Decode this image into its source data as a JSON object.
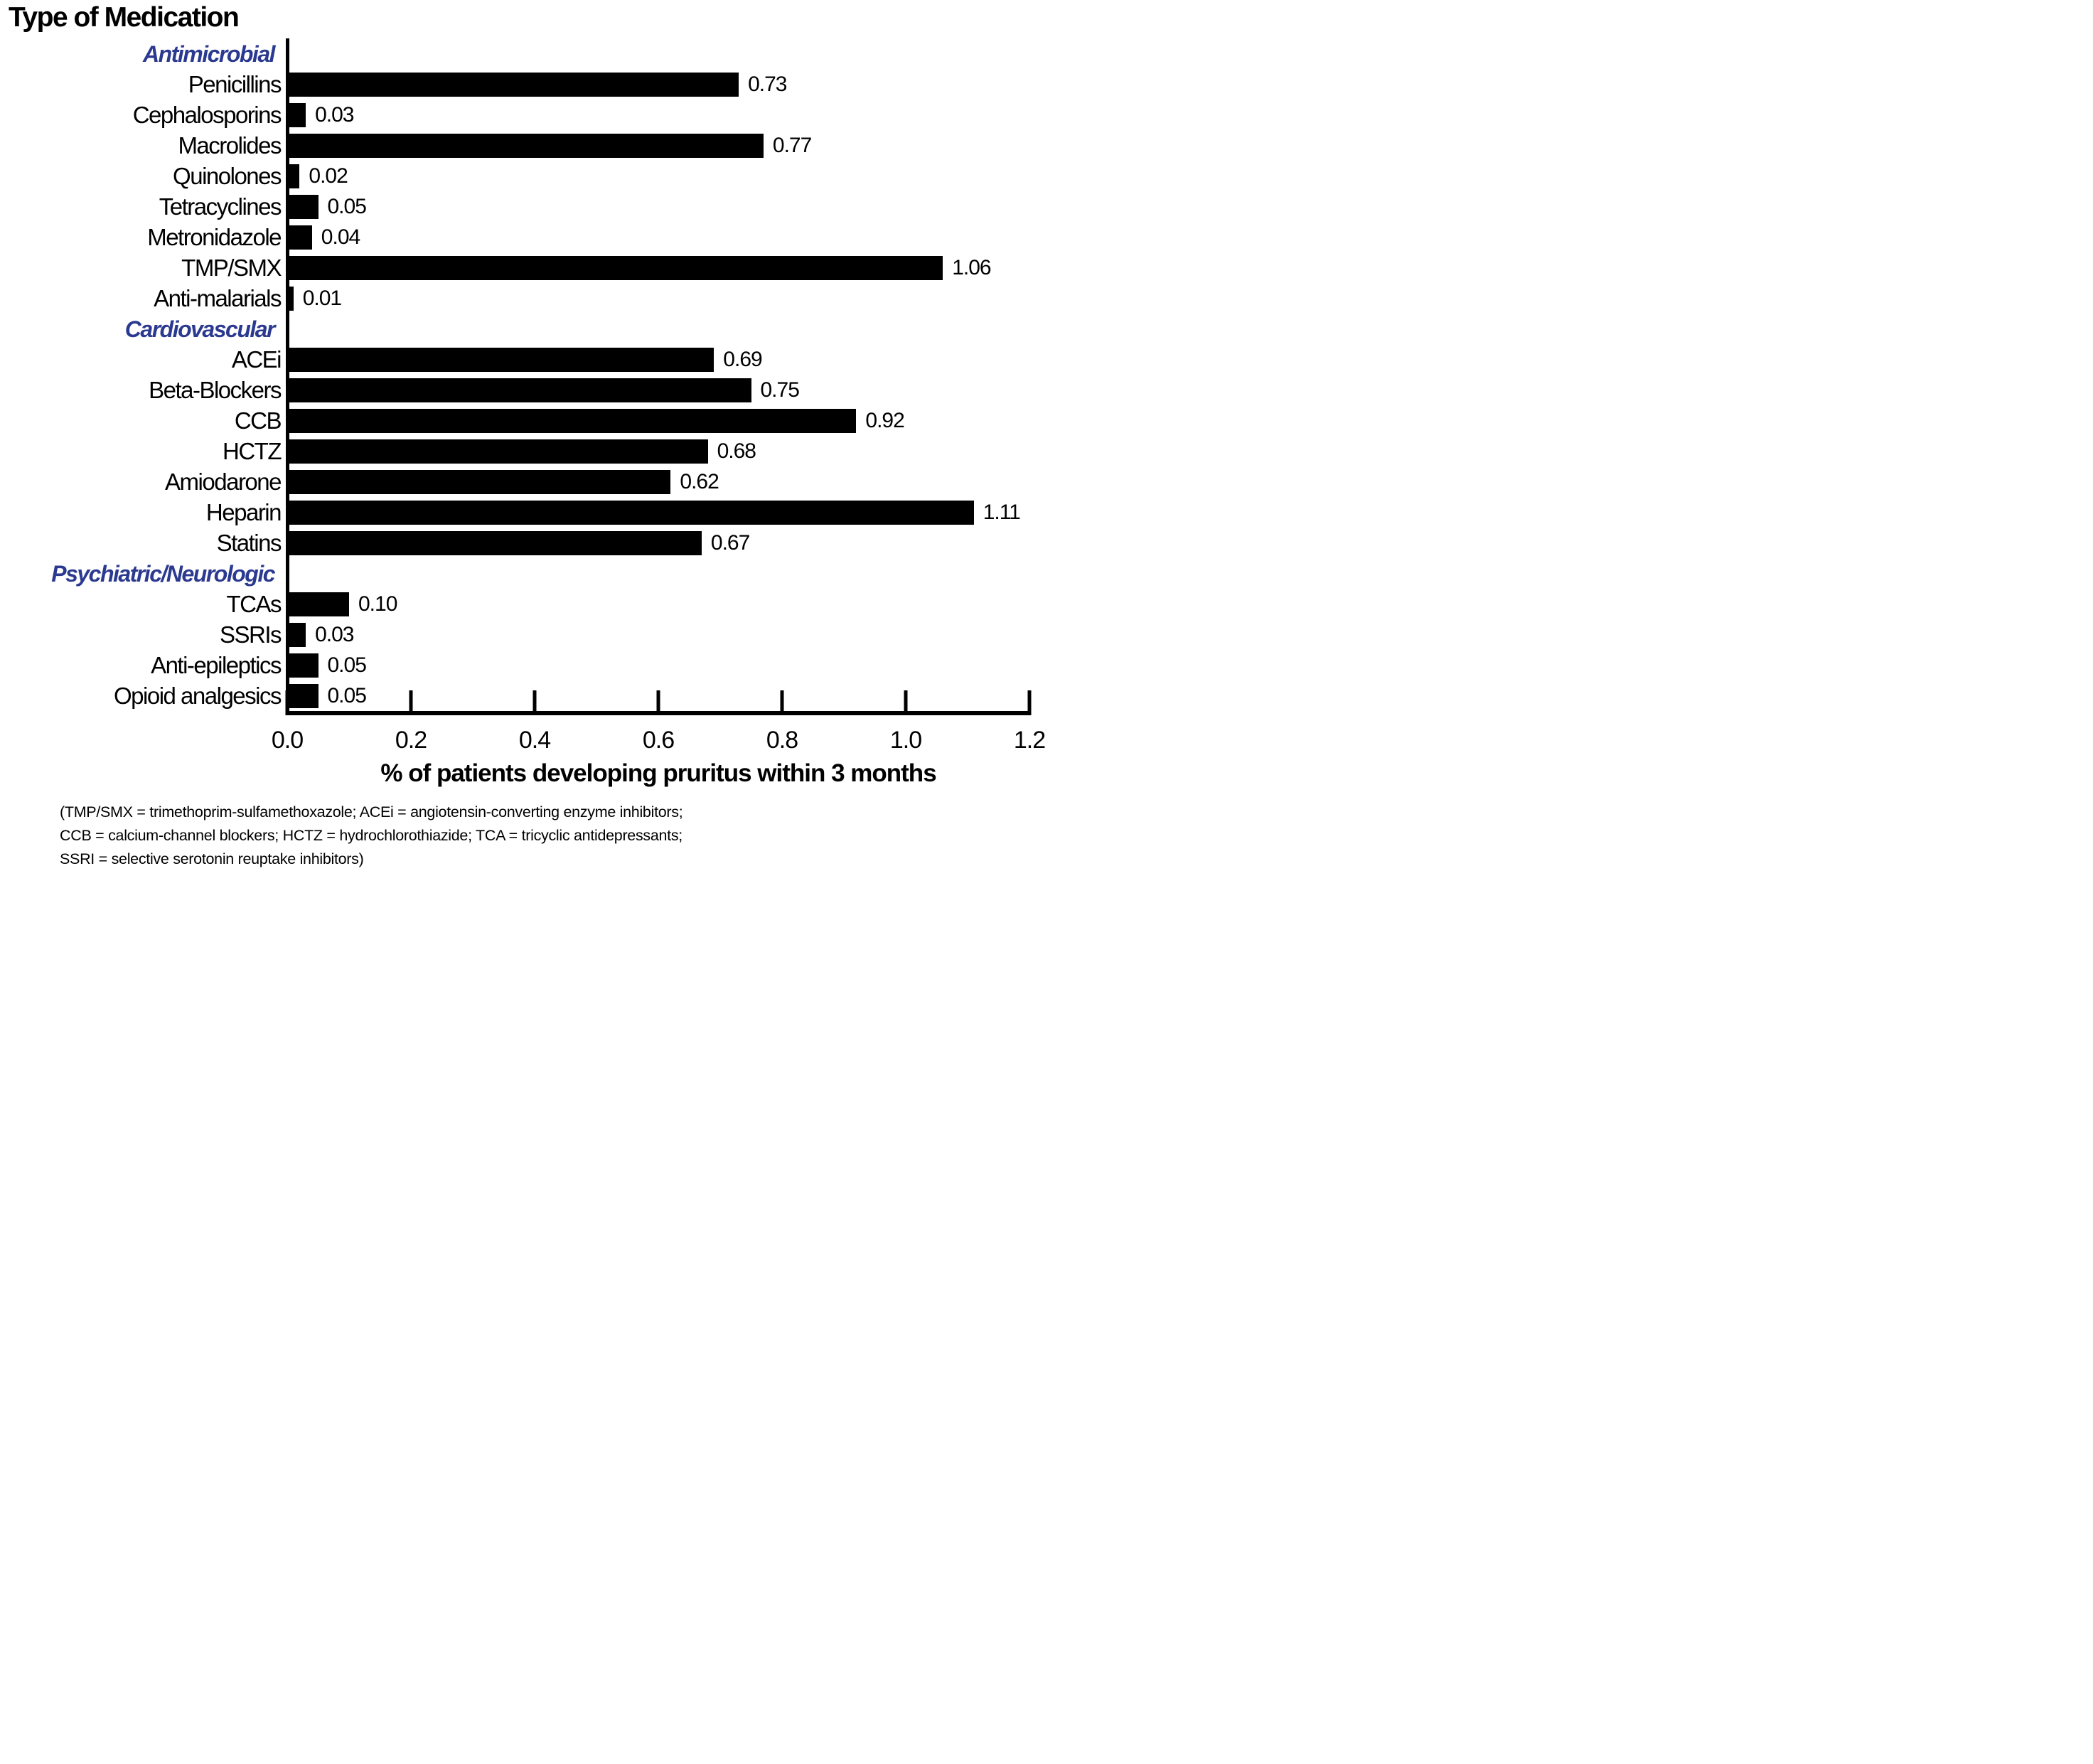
{
  "header": {
    "title": "Type of Medication"
  },
  "chart_data": {
    "type": "bar",
    "orientation": "horizontal",
    "title": "Type of Medication",
    "xlabel": "% of patients developing pruritus within 3 months",
    "xlim": [
      0,
      1.2
    ],
    "xticks": [
      0.0,
      0.2,
      0.4,
      0.6,
      0.8,
      1.0,
      1.2
    ],
    "xtick_labels": [
      "0.0",
      "0.2",
      "0.4",
      "0.6",
      "0.8",
      "1.0",
      "1.2"
    ],
    "bar_color": "#000000",
    "group_label_color": "#2b3990",
    "axis_color": "#000000",
    "grid": "off",
    "legend": "none",
    "groups": [
      {
        "label": "Antimicrobial",
        "items": [
          {
            "label": "Penicillins",
            "value": 0.73,
            "value_label": "0.73"
          },
          {
            "label": "Cephalosporins",
            "value": 0.03,
            "value_label": "0.03"
          },
          {
            "label": "Macrolides",
            "value": 0.77,
            "value_label": "0.77"
          },
          {
            "label": "Quinolones",
            "value": 0.02,
            "value_label": "0.02"
          },
          {
            "label": "Tetracyclines",
            "value": 0.05,
            "value_label": "0.05"
          },
          {
            "label": "Metronidazole",
            "value": 0.04,
            "value_label": "0.04"
          },
          {
            "label": "TMP/SMX",
            "value": 1.06,
            "value_label": "1.06"
          },
          {
            "label": "Anti-malarials",
            "value": 0.01,
            "value_label": "0.01"
          }
        ]
      },
      {
        "label": "Cardiovascular",
        "items": [
          {
            "label": "ACEi",
            "value": 0.69,
            "value_label": "0.69"
          },
          {
            "label": "Beta-Blockers",
            "value": 0.75,
            "value_label": "0.75"
          },
          {
            "label": "CCB",
            "value": 0.92,
            "value_label": "0.92"
          },
          {
            "label": "HCTZ",
            "value": 0.68,
            "value_label": "0.68"
          },
          {
            "label": "Amiodarone",
            "value": 0.62,
            "value_label": "0.62"
          },
          {
            "label": "Heparin",
            "value": 1.11,
            "value_label": "1.11"
          },
          {
            "label": "Statins",
            "value": 0.67,
            "value_label": "0.67"
          }
        ]
      },
      {
        "label": "Psychiatric/Neurologic",
        "items": [
          {
            "label": "TCAs",
            "value": 0.1,
            "value_label": "0.10"
          },
          {
            "label": "SSRIs",
            "value": 0.03,
            "value_label": "0.03"
          },
          {
            "label": "Anti-epileptics",
            "value": 0.05,
            "value_label": "0.05"
          },
          {
            "label": "Opioid analgesics",
            "value": 0.05,
            "value_label": "0.05"
          }
        ]
      }
    ],
    "footnote_lines": [
      "(TMP/SMX = trimethoprim-sulfamethoxazole; ACEi = angiotensin-converting enzyme inhibitors;",
      "CCB = calcium-channel blockers; HCTZ = hydrochlorothiazide; TCA = tricyclic antidepressants;",
      "SSRI = selective serotonin reuptake inhibitors)"
    ]
  }
}
